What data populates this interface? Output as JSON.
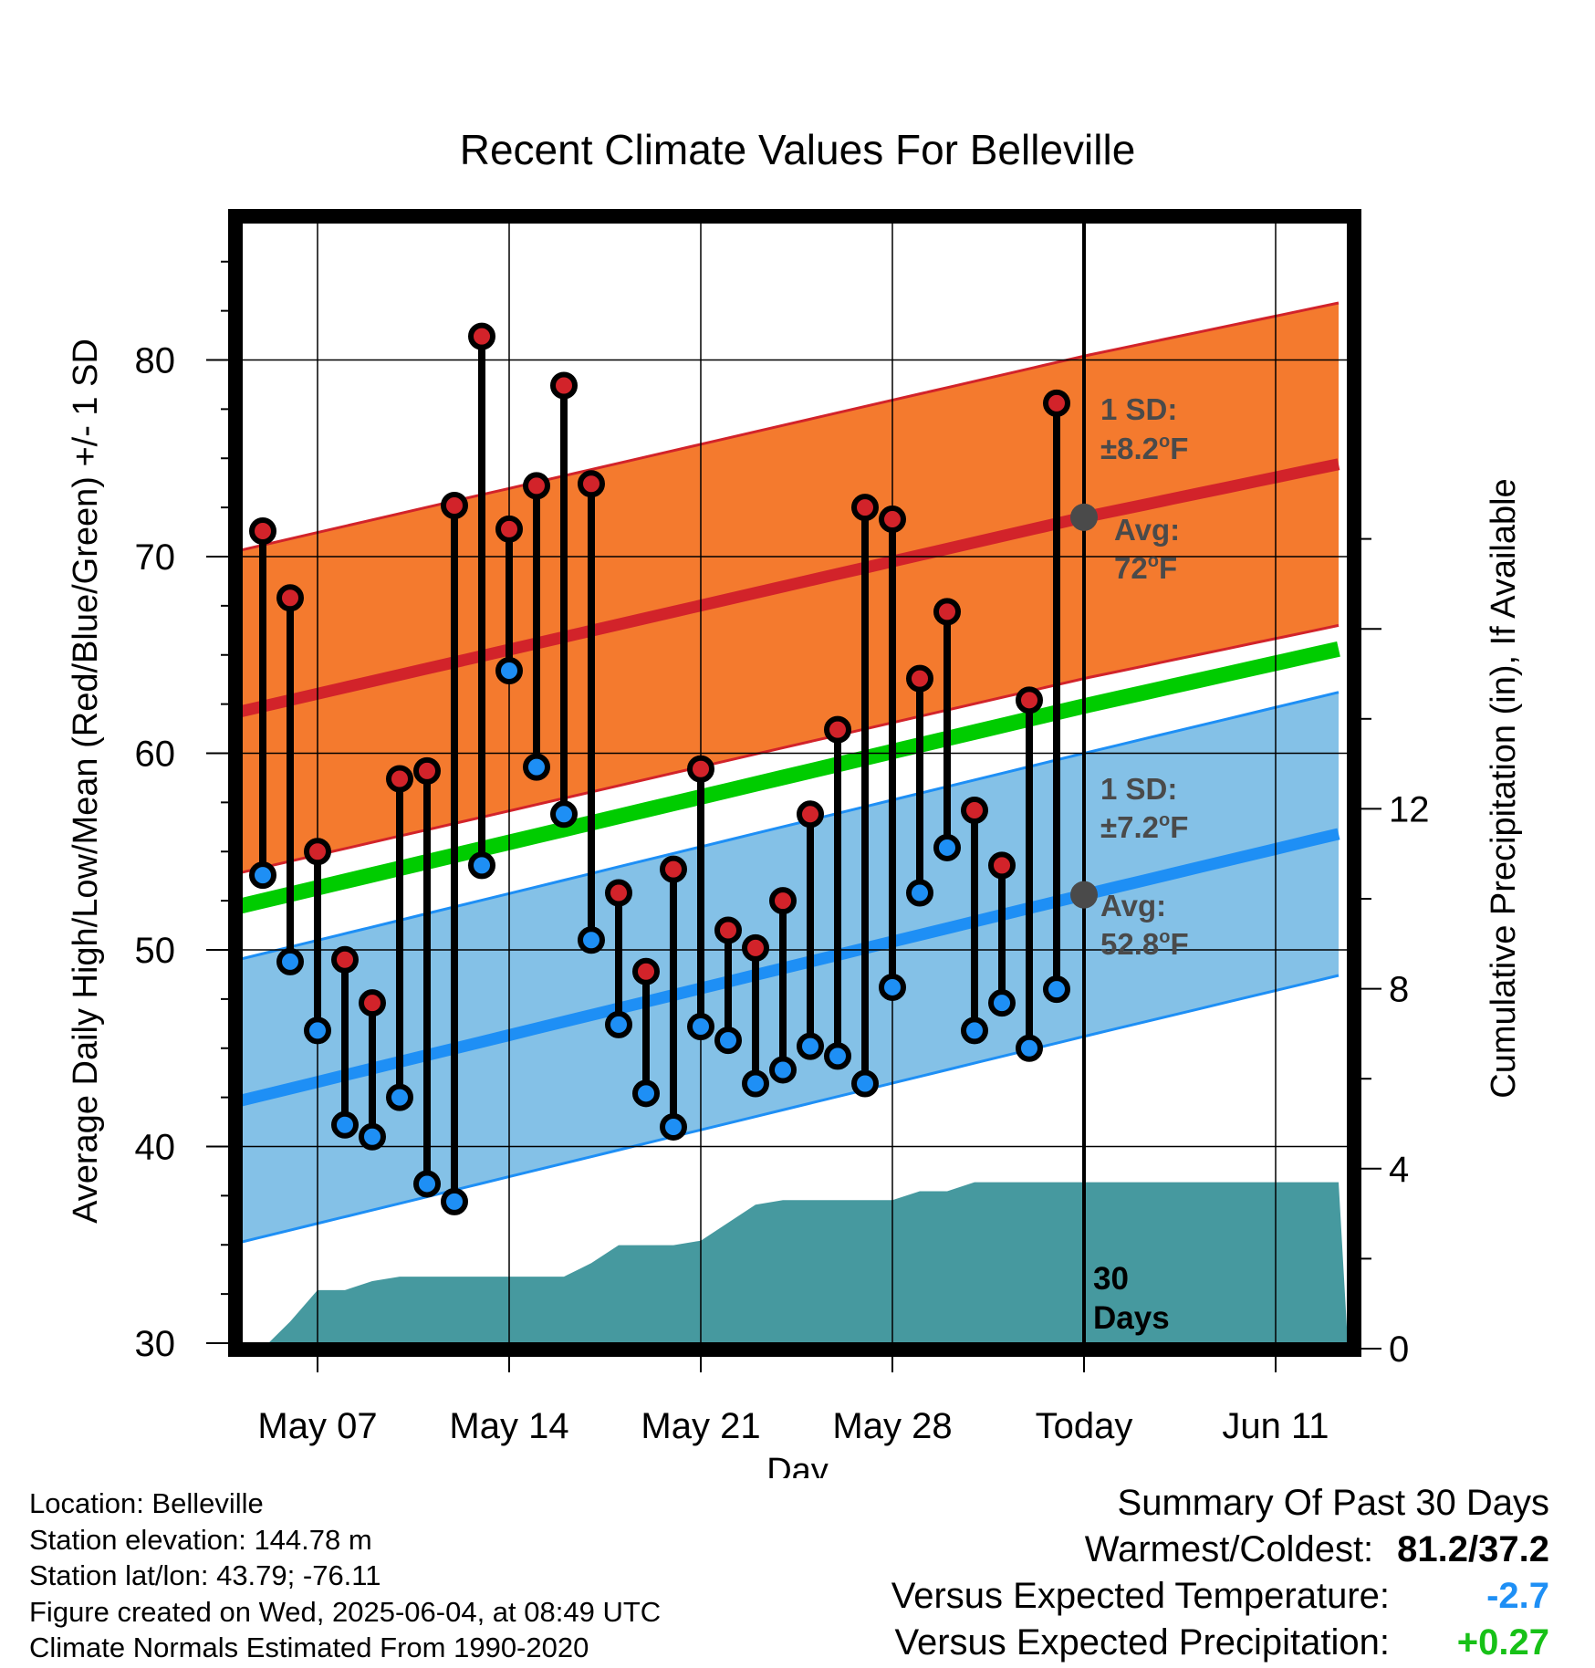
{
  "chart_data": {
    "type": "line",
    "title": "Recent Climate Values For Belleville",
    "xlabel": "Day",
    "ylabel": "Average Daily High/Low/Mean (Red/Blue/Green) +/- 1 SD",
    "y2label": "Cumulative Precipitation (in), If Available",
    "ylim": [
      30,
      86
    ],
    "y2lim": [
      0,
      18
    ],
    "yticks": [
      "30",
      "40",
      "50",
      "60",
      "70",
      "80"
    ],
    "y2ticks": [
      "0",
      "4",
      "8",
      "12"
    ],
    "x_ticks": [
      {
        "day": 7,
        "label": "May 07"
      },
      {
        "day": 14,
        "label": "May 14"
      },
      {
        "day": 21,
        "label": "May 21"
      },
      {
        "day": 28,
        "label": "May 28"
      },
      {
        "day": 35,
        "label": "Today"
      },
      {
        "day": 42,
        "label": "Jun 11"
      }
    ],
    "xlim": [
      3.8,
      44.3
    ],
    "days": [
      5,
      6,
      7,
      8,
      9,
      10,
      11,
      12,
      13,
      14,
      15,
      16,
      17,
      18,
      19,
      20,
      21,
      22,
      23,
      24,
      25,
      26,
      27,
      28,
      29,
      30,
      31,
      32,
      33,
      34
    ],
    "series": [
      {
        "name": "Red",
        "values": [
          71.3,
          67.9,
          55.0,
          49.5,
          47.3,
          58.7,
          59.1,
          72.6,
          81.2,
          71.4,
          73.6,
          78.7,
          73.7,
          52.9,
          48.9,
          54.1,
          59.2,
          51.0,
          50.1,
          52.5,
          56.9,
          61.2,
          72.5,
          71.9,
          63.8,
          67.2,
          57.1,
          54.3,
          62.7,
          77.8
        ]
      },
      {
        "name": "Blue",
        "values": [
          53.8,
          49.4,
          45.9,
          41.1,
          40.5,
          42.5,
          38.1,
          37.2,
          54.3,
          64.2,
          59.3,
          56.9,
          50.5,
          46.2,
          42.7,
          41.0,
          46.1,
          45.4,
          43.2,
          43.9,
          45.1,
          44.6,
          43.2,
          48.1,
          52.9,
          55.2,
          45.9,
          47.3,
          45.0,
          48.0
        ]
      }
    ],
    "normals": {
      "high_avg": [
        [
          3.8,
          62.0
        ],
        [
          35,
          72.0
        ],
        [
          44.3,
          74.7
        ]
      ],
      "high_sd": 8.2,
      "low_avg": [
        [
          3.8,
          42.2
        ],
        [
          35,
          52.8
        ],
        [
          44.3,
          55.9
        ]
      ],
      "low_sd": 7.2,
      "mean_avg": [
        [
          3.8,
          52.1
        ],
        [
          35,
          62.4
        ],
        [
          44.3,
          65.3
        ]
      ]
    },
    "precip": [
      [
        4.5,
        0.0
      ],
      [
        5.0,
        0.0
      ],
      [
        6.0,
        0.6
      ],
      [
        7.0,
        1.3
      ],
      [
        8.0,
        1.3
      ],
      [
        9.0,
        1.5
      ],
      [
        10.0,
        1.6
      ],
      [
        11.0,
        1.6
      ],
      [
        12.0,
        1.6
      ],
      [
        13.0,
        1.6
      ],
      [
        14.0,
        1.6
      ],
      [
        15.0,
        1.6
      ],
      [
        16.0,
        1.6
      ],
      [
        17.0,
        1.9
      ],
      [
        18.0,
        2.3
      ],
      [
        19.0,
        2.3
      ],
      [
        20.0,
        2.3
      ],
      [
        21.0,
        2.4
      ],
      [
        22.0,
        2.8
      ],
      [
        23.0,
        3.2
      ],
      [
        24.0,
        3.3
      ],
      [
        25.0,
        3.3
      ],
      [
        26.0,
        3.3
      ],
      [
        27.0,
        3.3
      ],
      [
        28.0,
        3.3
      ],
      [
        29.0,
        3.5
      ],
      [
        30.0,
        3.5
      ],
      [
        31.0,
        3.7
      ],
      [
        35.0,
        3.7
      ],
      [
        44.3,
        3.7
      ]
    ],
    "annotations": {
      "high_sd_label": "1 SD:",
      "high_sd_value": "±8.2",
      "high_avg_label": "Avg:",
      "high_avg_value": "72",
      "low_sd_label": "1 SD:",
      "low_sd_value": "±7.2",
      "low_avg_label": "Avg:",
      "low_avg_value": "52.8",
      "degree_unit": "o",
      "f_unit": "F",
      "period_top": "30",
      "period_bottom": "Days"
    },
    "colors": {
      "high_band": "#f47a2e",
      "high_line": "#d2232a",
      "low_band": "#84c1e7",
      "low_line": "#1e8ff5",
      "mean_line": "#00cc00",
      "precip": "#46999f",
      "dot_high": "#d2232a",
      "dot_low": "#1e8ff5",
      "annotation": "#4a4a4a"
    }
  },
  "footer": {
    "location": "Location: Belleville",
    "elevation": "Station elevation: 144.78 m",
    "latlon": "Station lat/lon: 43.79; -76.11",
    "created": "Figure created on Wed, 2025-06-04, at 08:49 UTC",
    "normals": "Climate Normals Estimated From 1990-2020"
  },
  "summary": {
    "title": "Summary Of Past 30 Days",
    "warm_cold_label": "Warmest/Coldest:",
    "warm_cold_value": "81.2/37.2",
    "temp_label": "Versus Expected Temperature:",
    "temp_value": "-2.7",
    "temp_color": "#1e8ff5",
    "precip_label": "Versus Expected Precipitation:",
    "precip_value": "+0.27",
    "precip_color": "#17c117"
  }
}
